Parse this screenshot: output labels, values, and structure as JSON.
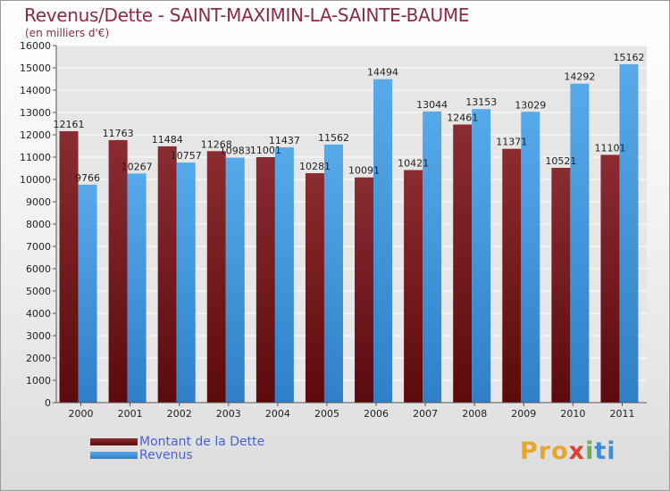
{
  "chart_data": {
    "type": "bar",
    "title": "Revenus/Dette - SAINT-MAXIMIN-LA-SAINTE-BAUME",
    "subtitle": "(en milliers d'€)",
    "categories": [
      "2000",
      "2001",
      "2002",
      "2003",
      "2004",
      "2005",
      "2006",
      "2007",
      "2008",
      "2009",
      "2010",
      "2011"
    ],
    "series": [
      {
        "name": "Montant de la Dette",
        "color": "#7a1e22",
        "values": [
          12161,
          11763,
          11484,
          11268,
          11001,
          10281,
          10091,
          10421,
          12461,
          11371,
          10521,
          11101
        ],
        "labels": [
          "12161",
          "11763",
          "11484",
          "11268",
          "11001",
          "10281",
          "10091",
          "10421",
          "12461",
          "11371",
          "10521",
          "11101"
        ]
      },
      {
        "name": "Revenus",
        "color": "#3a8fd8",
        "values": [
          9766,
          10267,
          10757,
          10983,
          11437,
          11562,
          14494,
          13044,
          13153,
          13029,
          14292,
          15162
        ],
        "labels": [
          "9766",
          "10267",
          "10757",
          "10983",
          "11437",
          "11562",
          "14494",
          "13044",
          "13153",
          "13029",
          "14292",
          "15162"
        ]
      }
    ],
    "ylim": [
      0,
      16000
    ],
    "yticks": [
      0,
      1000,
      2000,
      3000,
      4000,
      5000,
      6000,
      7000,
      8000,
      9000,
      10000,
      11000,
      12000,
      13000,
      14000,
      15000,
      16000
    ],
    "ytick_labels": [
      "0",
      "1000",
      "2000",
      "3000",
      "4000",
      "5000",
      "6000",
      "7000",
      "8000",
      "9000",
      "10000",
      "11000",
      "12000",
      "13000",
      "14000",
      "15000",
      "16000"
    ],
    "grid": true,
    "legend_position": "bottom-left"
  },
  "logo": {
    "p1": "Pro",
    "p2": "x",
    "p3": "i",
    "p4": "ti"
  }
}
